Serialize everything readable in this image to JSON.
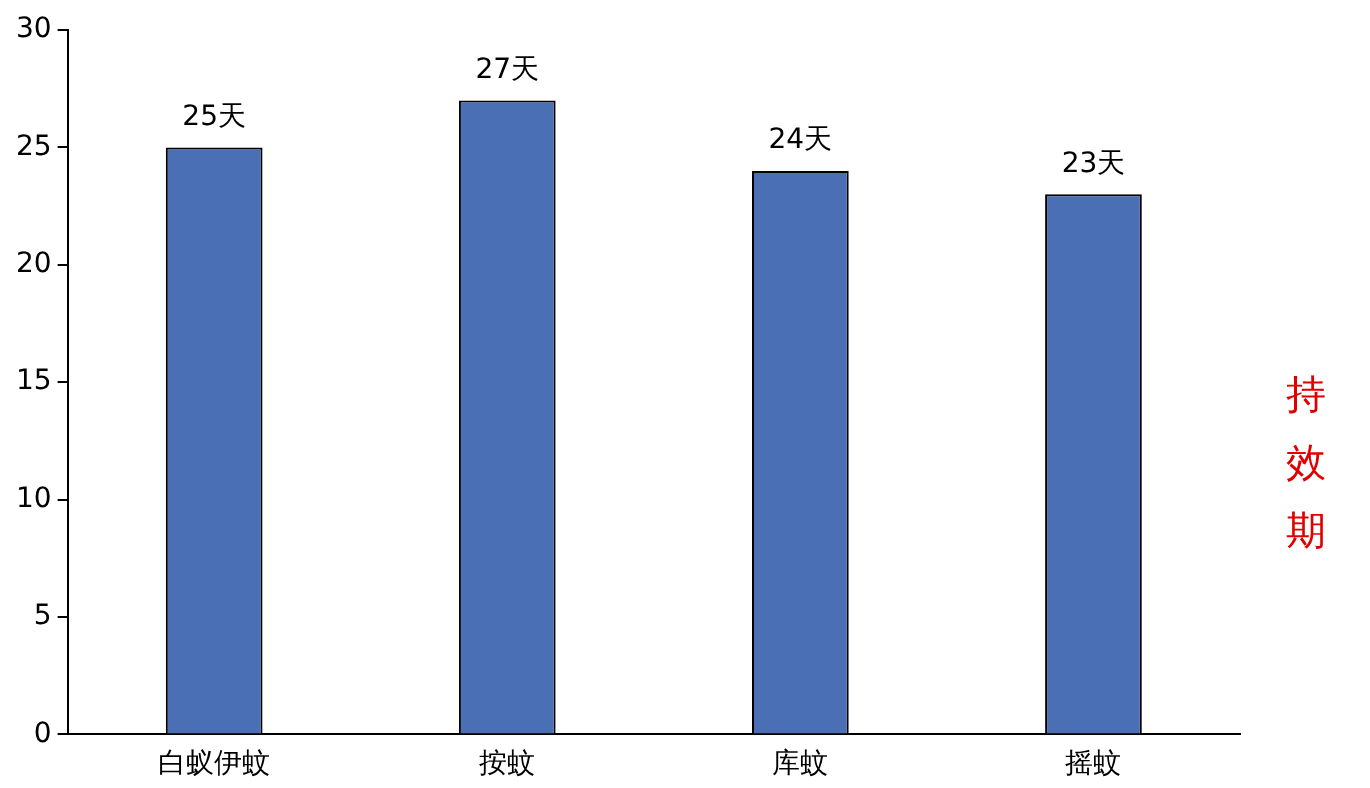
{
  "chart_data": {
    "type": "bar",
    "ylabel": "持效期",
    "categories": [
      "白蚁伊蚊",
      "按蚊",
      "库蚊",
      "摇蚊"
    ],
    "values": [
      25,
      27,
      24,
      23
    ],
    "value_labels": [
      "25天",
      "27天",
      "24天",
      "23天"
    ],
    "color": "#4a6fb5",
    "ylim": [
      0,
      30
    ],
    "yticks": [
      0,
      5,
      10,
      15,
      20,
      25,
      30
    ],
    "grid": false,
    "legend": false
  }
}
